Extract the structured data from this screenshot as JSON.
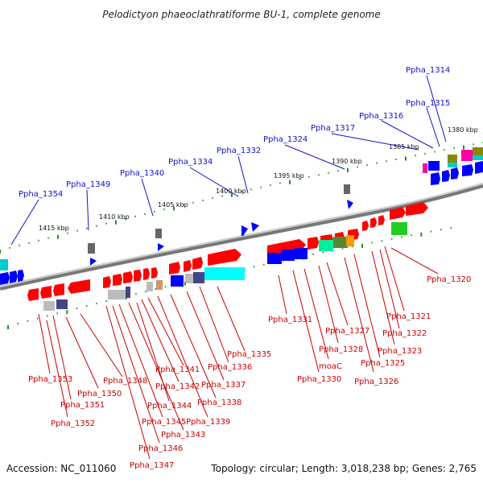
{
  "title": "Pelodictyon phaeoclathratiforme BU-1, complete genome",
  "footer": {
    "accession": "Accession: NC_011060",
    "topology": "Topology: circular; Length: 3,018,238 bp; Genes: 2,765"
  },
  "colors": {
    "forward": "#ff0000",
    "reverse": "#0000ff",
    "top_label": "#1010cc",
    "bottom_label": "#cc0000",
    "axis": "#888888",
    "tick": "#228B22"
  },
  "kbp_labels": [
    "1415 kbp",
    "1410 kbp",
    "1405 kbp",
    "1400 kbp",
    "1395 kbp",
    "1390 kbp",
    "1385 kbp",
    "1380 kbp"
  ],
  "top_labels": [
    "Ppha_1354",
    "Ppha_1349",
    "Ppha_1340",
    "Ppha_1334",
    "Ppha_1332",
    "Ppha_1324",
    "Ppha_1317",
    "Ppha_1316",
    "Ppha_1315",
    "Ppha_1314"
  ],
  "bottom_labels": [
    "Ppha_1353",
    "Ppha_1351",
    "Ppha_1352",
    "Ppha_1350",
    "Ppha_1348",
    "Ppha_1346",
    "Ppha_1347",
    "Ppha_1345",
    "Ppha_1343",
    "Ppha_1344",
    "Ppha_1342",
    "Ppha_1341",
    "Ppha_1339",
    "Ppha_1338",
    "Ppha_1337",
    "Ppha_1336",
    "Ppha_1335",
    "Ppha_1331",
    "Ppha_1330",
    "moaC",
    "Ppha_1328",
    "Ppha_1327",
    "Ppha_1326",
    "Ppha_1325",
    "Ppha_1323",
    "Ppha_1322",
    "Ppha_1321",
    "Ppha_1320"
  ]
}
